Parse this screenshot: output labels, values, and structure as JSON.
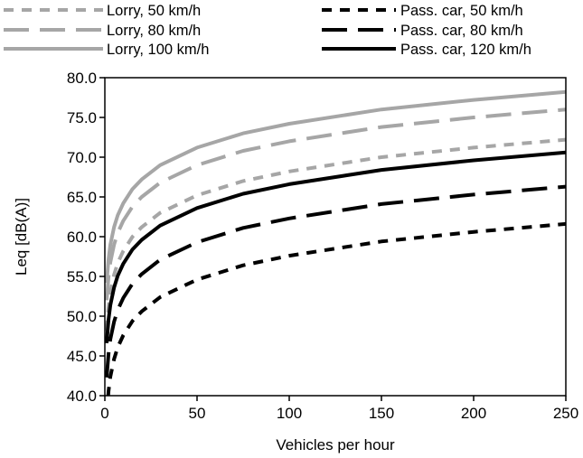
{
  "chart_data": {
    "type": "line",
    "title": "",
    "xlabel": "Vehicles per hour",
    "ylabel": "Leq [dB(A)]",
    "xlim": [
      0,
      250
    ],
    "ylim": [
      40,
      80
    ],
    "x_ticks": [
      "0",
      "50",
      "100",
      "150",
      "200",
      "250"
    ],
    "y_ticks": [
      "40.0",
      "45.0",
      "50.0",
      "55.0",
      "60.0",
      "65.0",
      "70.0",
      "75.0",
      "80.0"
    ],
    "grid": false,
    "legend_position": "top",
    "x": [
      1,
      2,
      3,
      5,
      7,
      10,
      15,
      20,
      30,
      50,
      75,
      100,
      150,
      200,
      250
    ],
    "series": [
      {
        "name": "Lorry, 50 km/h",
        "color": "#a6a6a6",
        "dash": "short",
        "values": [
          48.2,
          51.2,
          53.0,
          55.2,
          56.7,
          58.2,
          60.0,
          61.2,
          63.0,
          65.2,
          67.0,
          68.2,
          70.0,
          71.2,
          72.2
        ]
      },
      {
        "name": "Lorry, 80 km/h",
        "color": "#a6a6a6",
        "dash": "long",
        "values": [
          52.0,
          55.0,
          56.8,
          59.0,
          60.5,
          62.0,
          63.8,
          65.0,
          66.8,
          69.0,
          70.8,
          72.0,
          73.8,
          75.0,
          76.0
        ]
      },
      {
        "name": "Lorry, 100 km/h",
        "color": "#a6a6a6",
        "dash": "solid",
        "values": [
          54.2,
          57.2,
          59.0,
          61.2,
          62.7,
          64.2,
          66.0,
          67.2,
          69.0,
          71.2,
          73.0,
          74.2,
          76.0,
          77.2,
          78.2
        ]
      },
      {
        "name": "Pass. car, 50 km/h",
        "color": "#000000",
        "dash": "short",
        "values": [
          37.6,
          40.6,
          42.4,
          44.6,
          46.1,
          47.6,
          49.4,
          50.6,
          52.4,
          54.6,
          56.4,
          57.6,
          59.4,
          60.6,
          61.6
        ]
      },
      {
        "name": "Pass. car, 80 km/h",
        "color": "#000000",
        "dash": "long",
        "values": [
          42.3,
          45.3,
          47.1,
          49.3,
          50.8,
          52.3,
          54.1,
          55.3,
          57.1,
          59.3,
          61.1,
          62.3,
          64.1,
          65.3,
          66.3
        ]
      },
      {
        "name": "Pass. car, 120 km/h",
        "color": "#000000",
        "dash": "solid",
        "values": [
          46.6,
          49.6,
          51.4,
          53.6,
          55.1,
          56.6,
          58.4,
          59.6,
          61.4,
          63.6,
          65.4,
          66.6,
          68.4,
          69.6,
          70.6
        ]
      }
    ]
  }
}
